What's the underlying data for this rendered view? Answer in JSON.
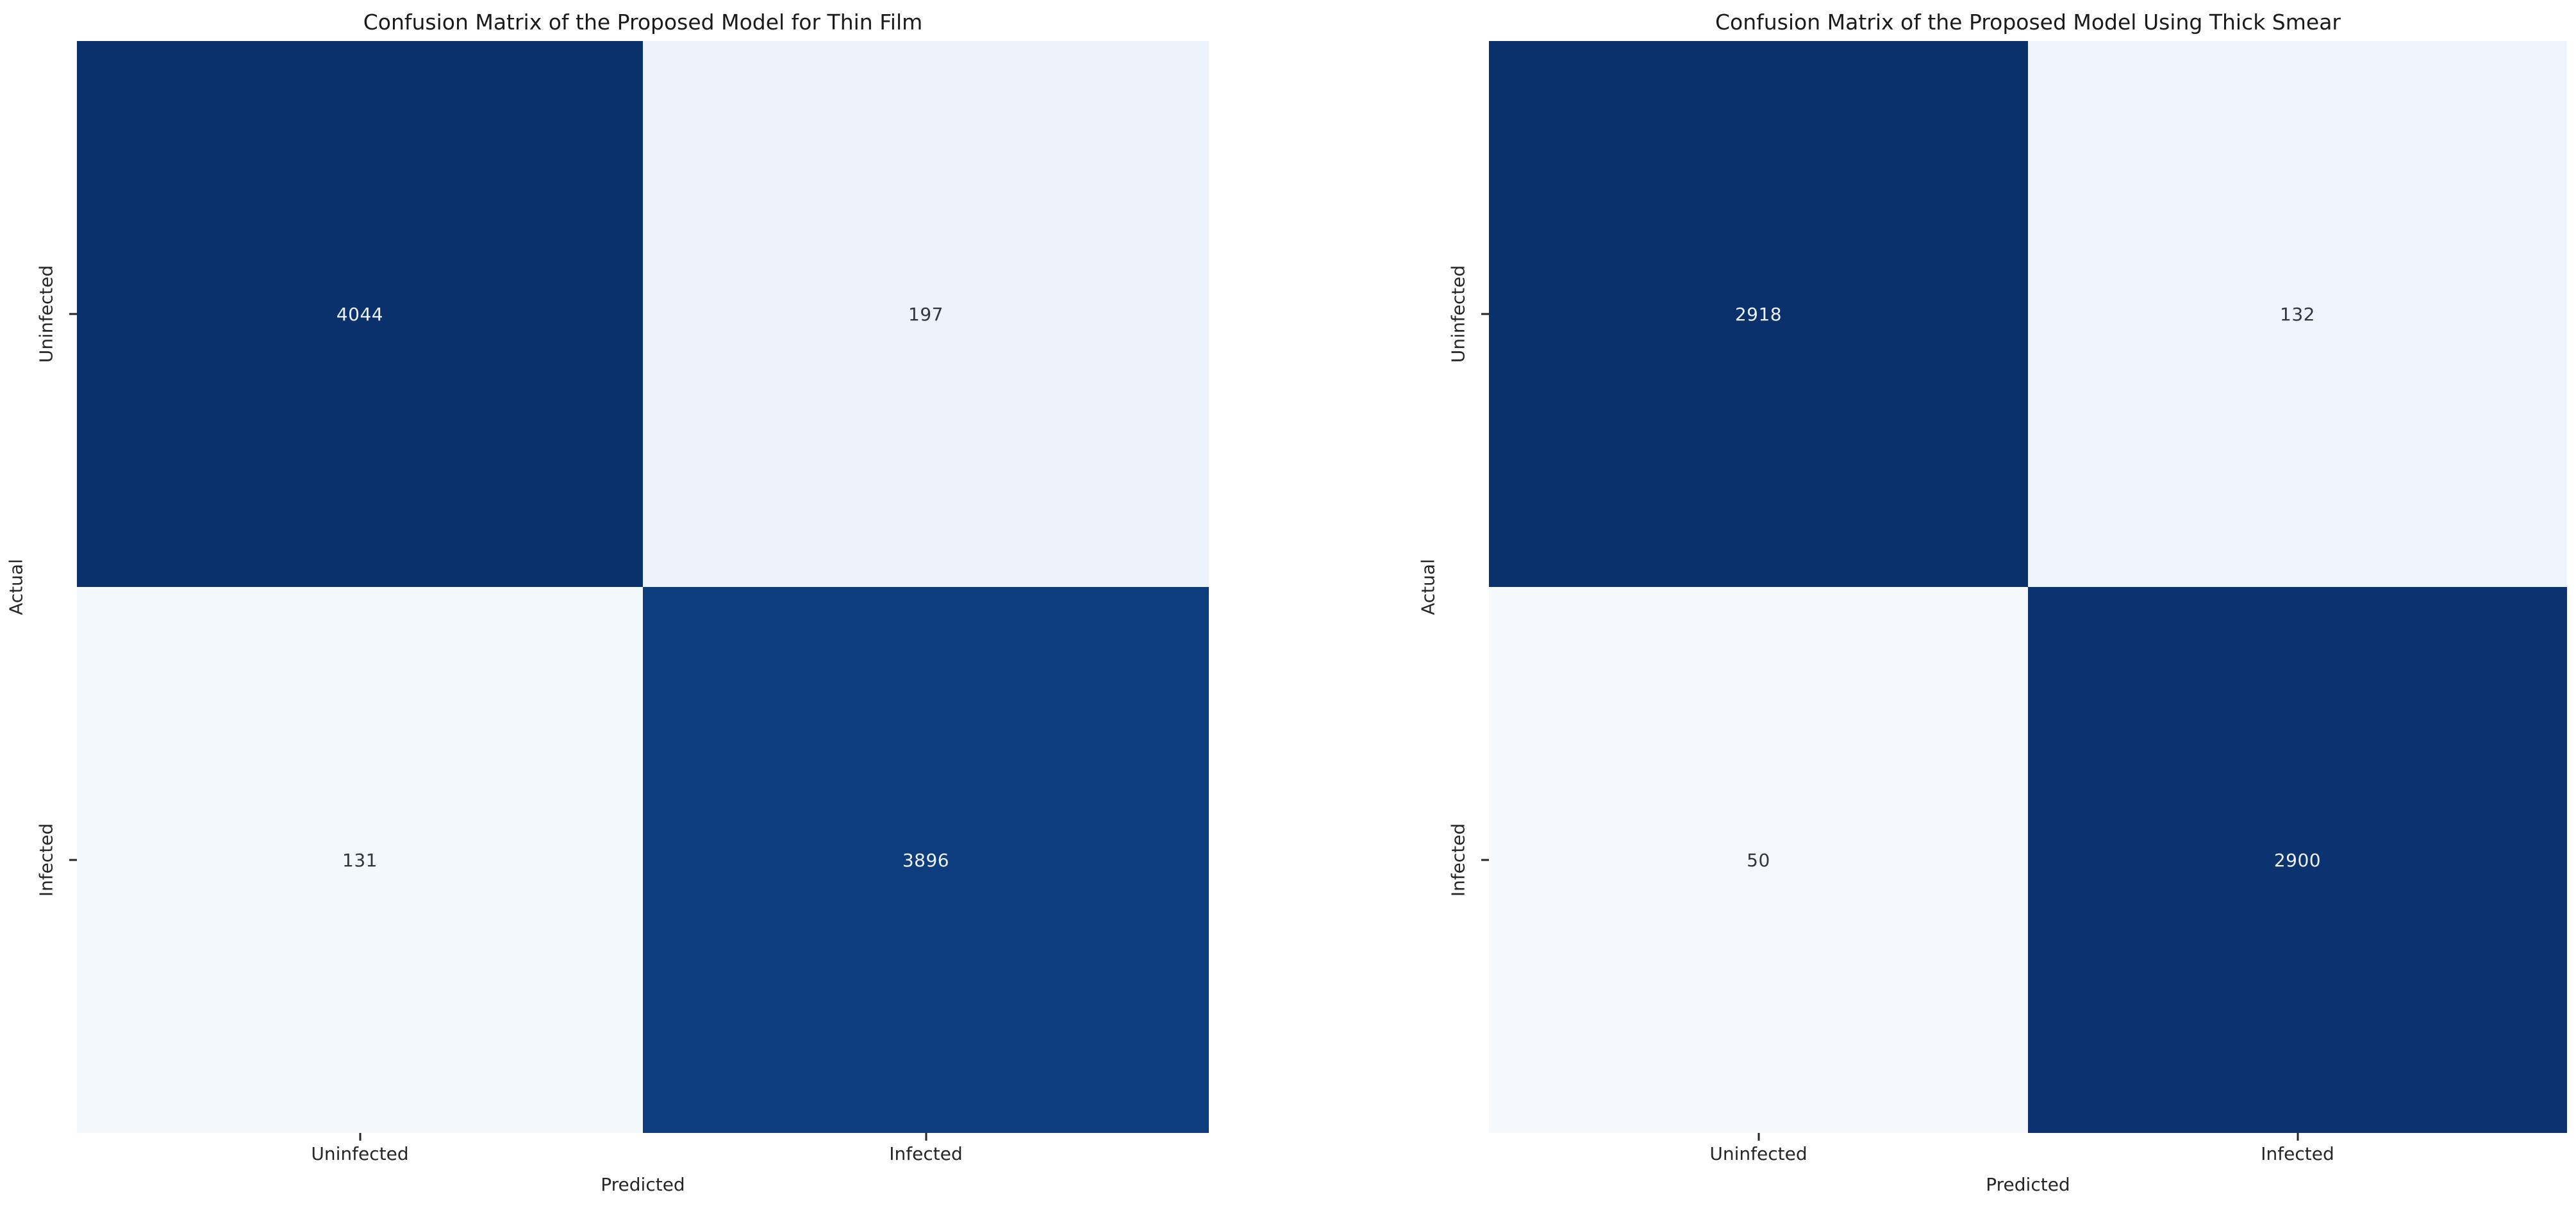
{
  "figure": {
    "background": "#ffffff",
    "text_color": "#262626"
  },
  "chart_data": [
    {
      "type": "heatmap",
      "title": "Confusion Matrix of the Proposed Model for Thin Film",
      "xlabel": "Predicted",
      "ylabel": "Actual",
      "x_categories": [
        "Uninfected",
        "Infected"
      ],
      "y_categories": [
        "Uninfected",
        "Infected"
      ],
      "values": [
        [
          4044,
          197
        ],
        [
          131,
          3896
        ]
      ],
      "colormap": "Blues",
      "colorbar": false,
      "legend": "none",
      "grid": false,
      "cell_colors": [
        [
          "#0a316b",
          "#edf3fb"
        ],
        [
          "#f3f8fd",
          "#0d3d7c"
        ]
      ],
      "text_colors": [
        [
          "#edf1f9",
          "#30353d"
        ],
        [
          "#30353d",
          "#edf1f9"
        ]
      ]
    },
    {
      "type": "heatmap",
      "title": "Confusion Matrix of the Proposed Model Using Thick Smear",
      "xlabel": "Predicted",
      "ylabel": "Actual",
      "x_categories": [
        "Uninfected",
        "Infected"
      ],
      "y_categories": [
        "Uninfected",
        "Infected"
      ],
      "values": [
        [
          2918,
          132
        ],
        [
          50,
          2900
        ]
      ],
      "colormap": "Blues",
      "colorbar": false,
      "legend": "none",
      "grid": false,
      "cell_colors": [
        [
          "#0a316b",
          "#eef4fb"
        ],
        [
          "#f5f9fe",
          "#0b336f"
        ]
      ],
      "text_colors": [
        [
          "#edf1f9",
          "#30353d"
        ],
        [
          "#30353d",
          "#edf1f9"
        ]
      ]
    }
  ]
}
